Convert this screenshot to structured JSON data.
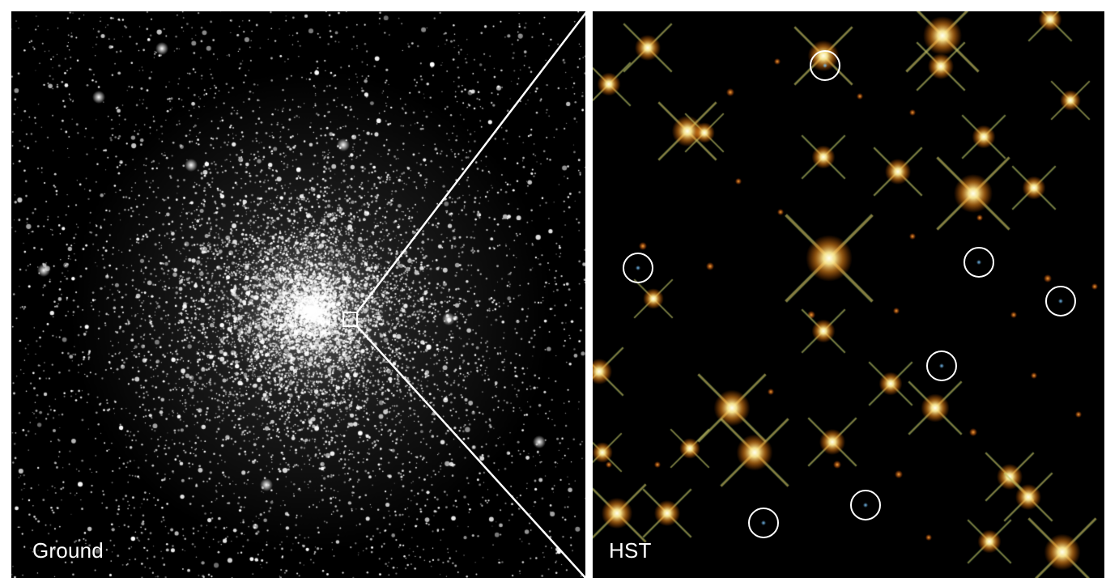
{
  "panels": {
    "ground": {
      "label": "Ground"
    },
    "hst": {
      "label": "HST"
    }
  },
  "colors": {
    "background": "#000000",
    "frame": "#ffffff",
    "ground_star": "#ffffff",
    "hst_star_core": "#fff6c8",
    "hst_star_halo": "#ffa020",
    "hst_faint_star": "#ff7a10",
    "white_dwarf": "#7ec8ff",
    "marker_circle": "#ffffff"
  },
  "icons": {
    "marker": "circle-marker-icon",
    "zoom": "zoom-inset-icon"
  }
}
